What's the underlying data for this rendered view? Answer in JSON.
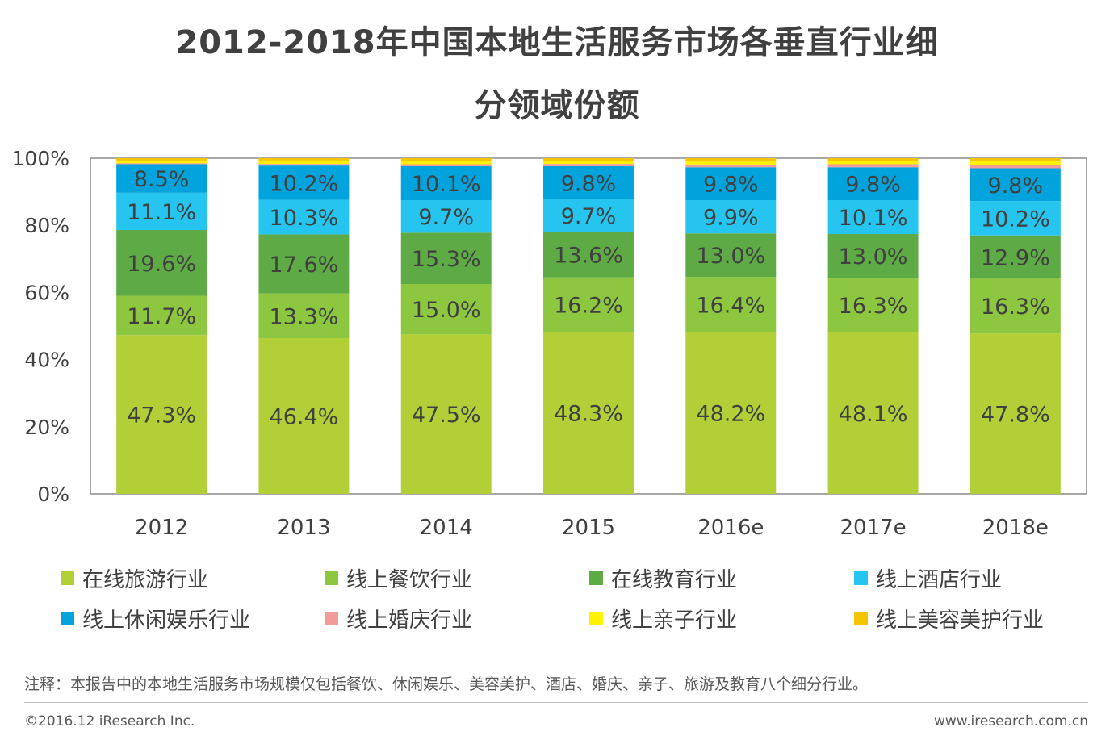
{
  "header": {
    "title_line1": "2012-2018年中国本地生活服务市场各垂直行业细",
    "title_line2": "分领域份额"
  },
  "chart_data": {
    "type": "bar",
    "stacked": true,
    "title": "2012-2018年中国本地生活服务市场各垂直行业细分领域份额",
    "categories": [
      "2012",
      "2013",
      "2014",
      "2015",
      "2016e",
      "2017e",
      "2018e"
    ],
    "ylim": [
      0,
      100
    ],
    "yticks": [
      "0%",
      "20%",
      "40%",
      "60%",
      "80%",
      "100%"
    ],
    "series": [
      {
        "name": "在线旅游行业",
        "color": "#b3cf37",
        "values": [
          47.3,
          46.4,
          47.5,
          48.3,
          48.2,
          48.1,
          47.8
        ],
        "labels": [
          "47.3%",
          "46.4%",
          "47.5%",
          "48.3%",
          "48.2%",
          "48.1%",
          "47.8%"
        ]
      },
      {
        "name": "线上餐饮行业",
        "color": "#8dc63f",
        "values": [
          11.7,
          13.3,
          15.0,
          16.2,
          16.4,
          16.3,
          16.3
        ],
        "labels": [
          "11.7%",
          "13.3%",
          "15.0%",
          "16.2%",
          "16.4%",
          "16.3%",
          "16.3%"
        ]
      },
      {
        "name": "在线教育行业",
        "color": "#5eaa45",
        "values": [
          19.6,
          17.6,
          15.3,
          13.6,
          13.0,
          13.0,
          12.9
        ],
        "labels": [
          "19.6%",
          "17.6%",
          "15.3%",
          "13.6%",
          "13.0%",
          "13.0%",
          "12.9%"
        ]
      },
      {
        "name": "线上酒店行业",
        "color": "#25c5ef",
        "values": [
          11.1,
          10.3,
          9.7,
          9.7,
          9.9,
          10.1,
          10.2
        ],
        "labels": [
          "11.1%",
          "10.3%",
          "9.7%",
          "9.7%",
          "9.9%",
          "10.1%",
          "10.2%"
        ]
      },
      {
        "name": "线上休闲娱乐行业",
        "color": "#00a3dc",
        "values": [
          8.5,
          10.2,
          10.1,
          9.8,
          9.8,
          9.8,
          9.8
        ],
        "labels": [
          "8.5%",
          "10.2%",
          "10.1%",
          "9.8%",
          "9.8%",
          "9.8%",
          "9.8%"
        ]
      },
      {
        "name": "线上婚庆行业",
        "color": "#f29b9b",
        "values": [
          0.3,
          0.5,
          0.6,
          0.7,
          0.8,
          0.9,
          1.0
        ],
        "labels": null
      },
      {
        "name": "线上亲子行业",
        "color": "#fff200",
        "values": [
          0.8,
          1.0,
          1.0,
          0.9,
          0.9,
          0.9,
          1.0
        ],
        "labels": null
      },
      {
        "name": "线上美容美护行业",
        "color": "#f7c400",
        "values": [
          0.7,
          0.7,
          0.8,
          0.8,
          1.0,
          0.9,
          1.0
        ],
        "labels": null
      }
    ]
  },
  "footer": {
    "note": "注释：本报告中的本地生活服务市场规模仅包括餐饮、休闲娱乐、美容美护、酒店、婚庆、亲子、旅游及教育八个细分行业。",
    "copyright": "©2016.12 iResearch Inc.",
    "website": "www.iresearch.com.cn"
  }
}
